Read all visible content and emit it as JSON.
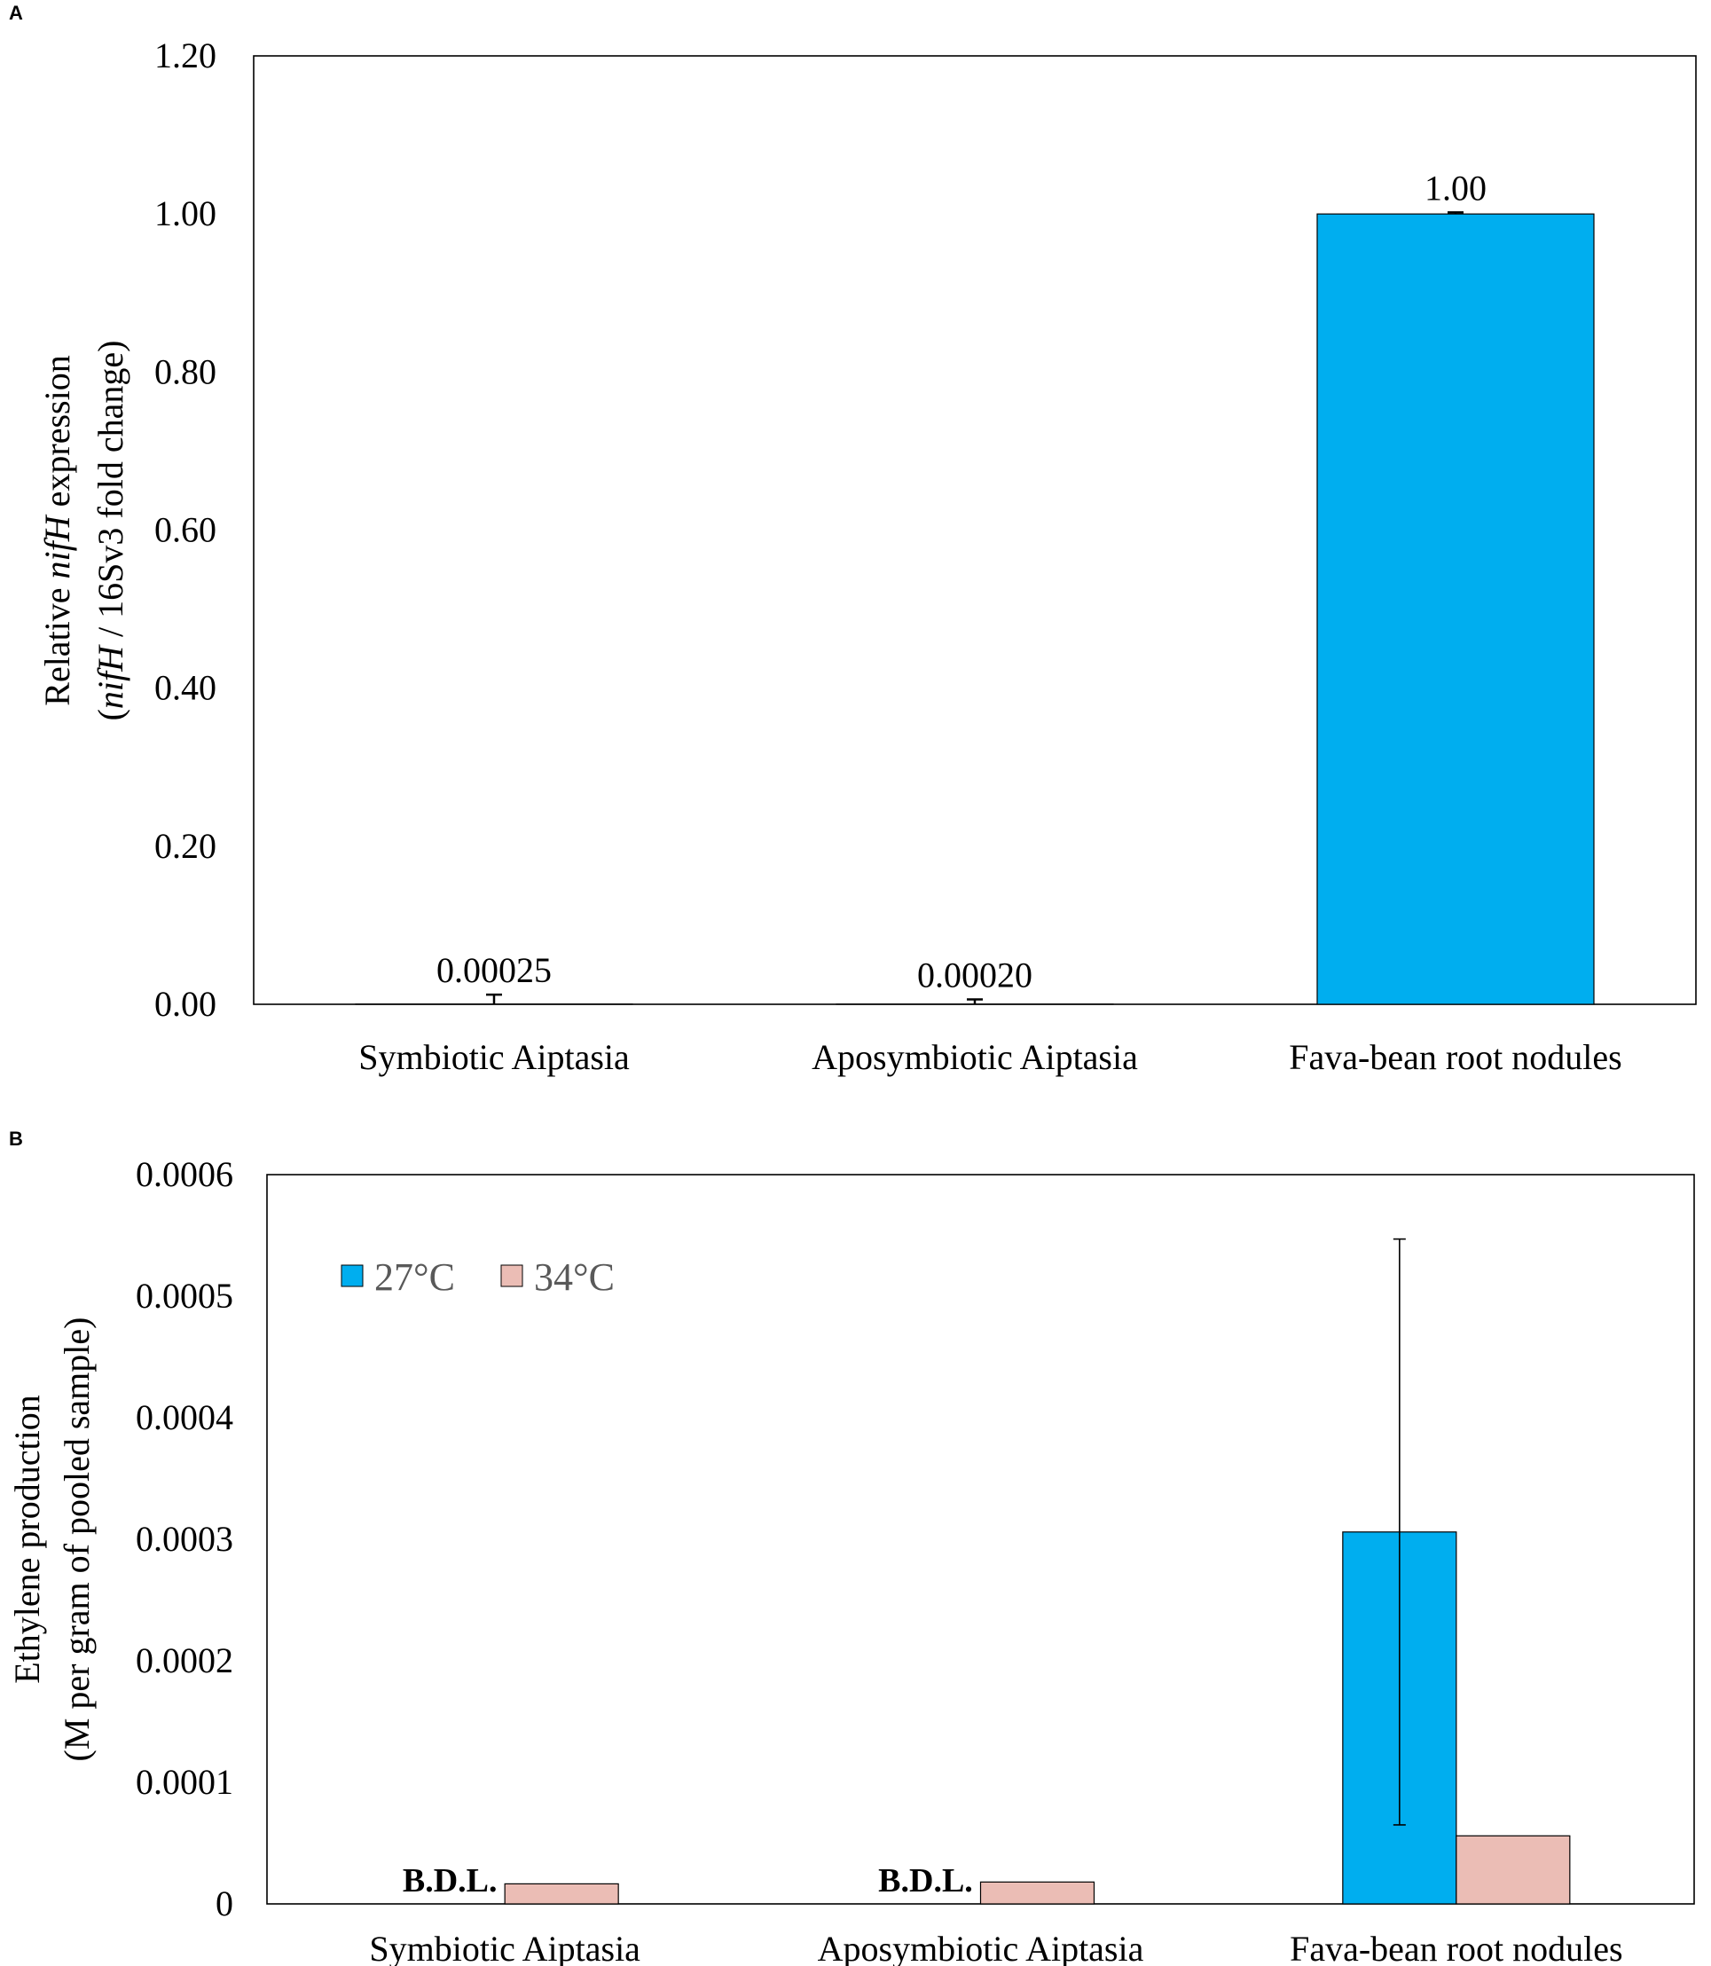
{
  "chart_data": [
    {
      "panel": "A",
      "type": "bar",
      "title": "",
      "ylabel_line1_prefix": "Relative ",
      "ylabel_line1_italic": "nifH",
      "ylabel_line1_suffix": " expression",
      "ylabel_line2_prefix": "(",
      "ylabel_line2_italic": "nifH",
      "ylabel_line2_suffix": " / 16Sv3 fold change)",
      "xlabel": "",
      "ylim": [
        0,
        1.2
      ],
      "yticks": [
        "0.00",
        "0.20",
        "0.40",
        "0.60",
        "0.80",
        "1.00",
        "1.20"
      ],
      "categories": [
        "Symbiotic Aiptasia",
        "Aposymbiotic Aiptasia",
        "Fava-bean root nodules"
      ],
      "values": [
        0.00025,
        0.0002,
        1.0
      ],
      "errors": [
        0.012,
        0.006,
        0.002
      ],
      "data_labels": [
        "0.00025",
        "0.00020",
        "1.00"
      ],
      "color": "#00AEEF"
    },
    {
      "panel": "B",
      "type": "bar",
      "title": "",
      "ylabel_line1": "Ethylene production",
      "ylabel_line2": "(M per gram of pooled sample)",
      "xlabel": "",
      "ylim": [
        0,
        0.0006
      ],
      "yticks": [
        "0",
        "0.0001",
        "0.0002",
        "0.0003",
        "0.0004",
        "0.0005",
        "0.0006"
      ],
      "categories": [
        "Symbiotic Aiptasia",
        "Aposymbiotic Aiptasia",
        "Fava-bean root nodules"
      ],
      "legend_position": "top-left",
      "series": [
        {
          "name": "27°C",
          "color": "#00AEEF",
          "values": [
            0,
            0,
            0.000306
          ],
          "errors": [
            null,
            null,
            0.000241
          ]
        },
        {
          "name": "34°C",
          "color": "#EBBDB5",
          "values": [
            1.65e-05,
            1.8e-05,
            5.6e-05
          ],
          "errors": [
            null,
            null,
            null
          ]
        }
      ],
      "annotations": [
        "B.D.L.",
        "B.D.L."
      ]
    }
  ]
}
